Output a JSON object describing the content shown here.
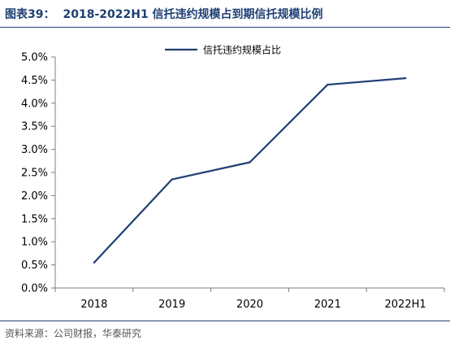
{
  "header": {
    "figure_label": "图表39：",
    "title": "2018-2022H1 信托违约规模占到期信托规模比例"
  },
  "source": {
    "text": "资料来源：公司财报，华泰研究"
  },
  "chart_data": {
    "type": "line",
    "title": "2018-2022H1 信托违约规模占到期信托规模比例",
    "xlabel": "",
    "ylabel": "",
    "categories": [
      "2018",
      "2019",
      "2020",
      "2021",
      "2022H1"
    ],
    "series": [
      {
        "name": "信托违约规模占比",
        "values": [
          0.55,
          2.35,
          2.72,
          4.4,
          4.54
        ],
        "color": "#1f3f73"
      }
    ],
    "ylim": [
      0,
      5.0
    ],
    "yticks": [
      "0.0%",
      "0.5%",
      "1.0%",
      "1.5%",
      "2.0%",
      "2.5%",
      "3.0%",
      "3.5%",
      "4.0%",
      "4.5%",
      "5.0%"
    ],
    "grid": false,
    "legend_position": "top"
  }
}
